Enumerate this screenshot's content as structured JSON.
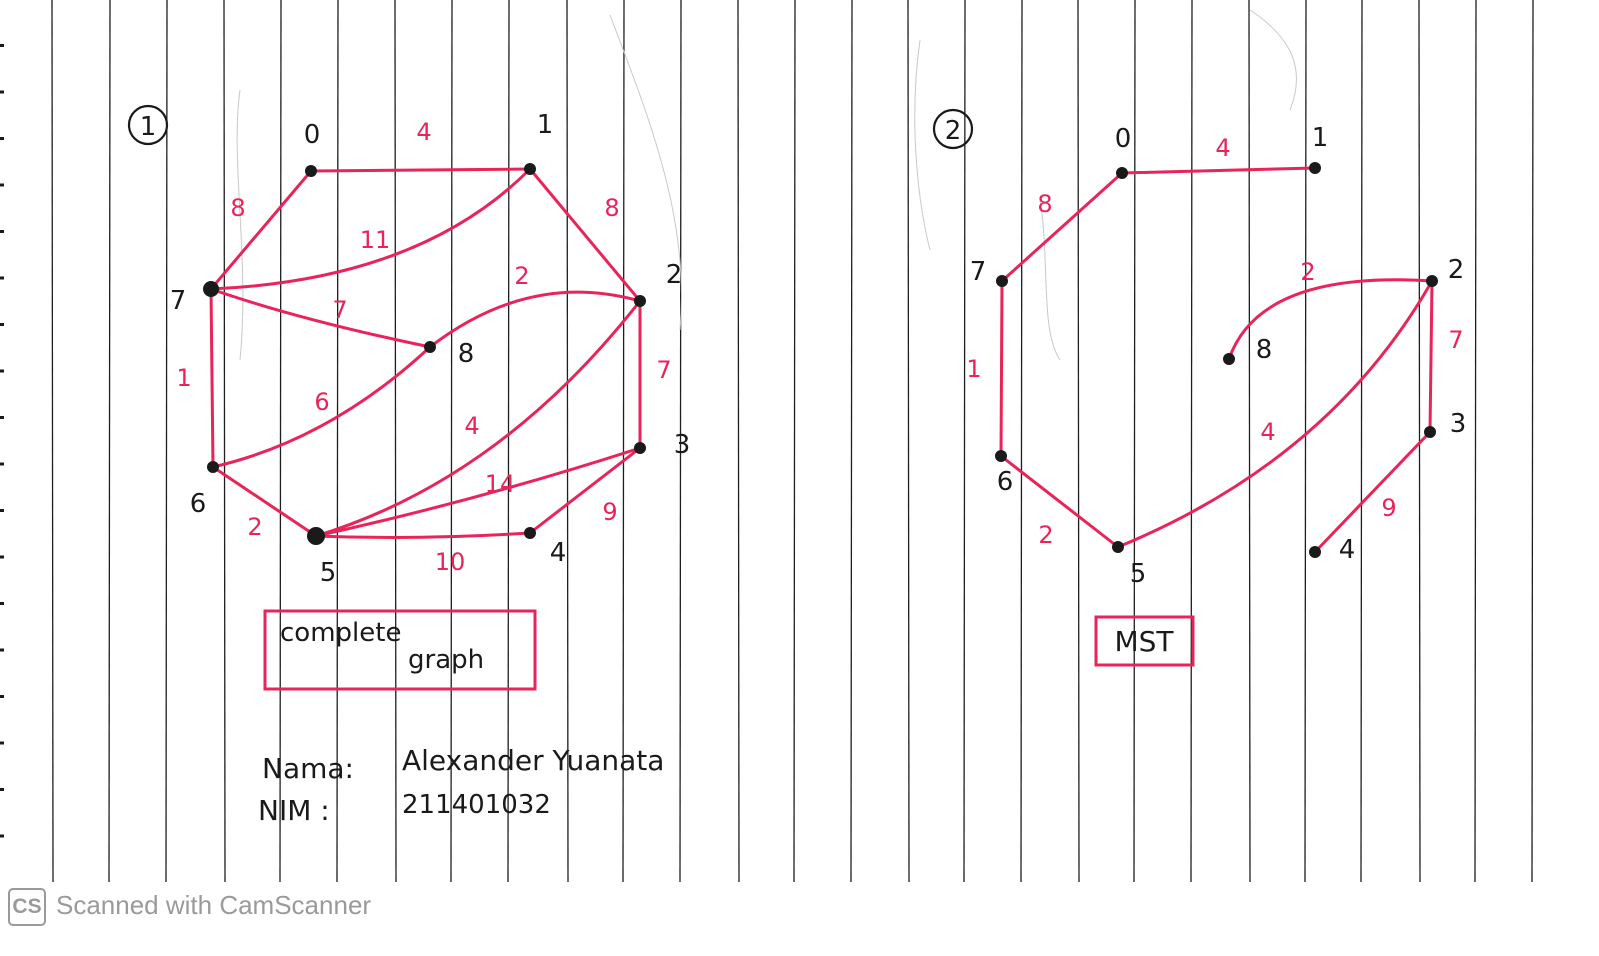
{
  "graph1": {
    "marker": "1",
    "box_line1": "complete",
    "box_line2": "graph",
    "nodes": [
      {
        "id": "0",
        "label": "0"
      },
      {
        "id": "1",
        "label": "1"
      },
      {
        "id": "2",
        "label": "2"
      },
      {
        "id": "3",
        "label": "3"
      },
      {
        "id": "4",
        "label": "4"
      },
      {
        "id": "5",
        "label": "5"
      },
      {
        "id": "6",
        "label": "6"
      },
      {
        "id": "7",
        "label": "7"
      },
      {
        "id": "8",
        "label": "8"
      }
    ],
    "edges": [
      {
        "from": "0",
        "to": "1",
        "weight": "4"
      },
      {
        "from": "0",
        "to": "7",
        "weight": "8"
      },
      {
        "from": "1",
        "to": "2",
        "weight": "8"
      },
      {
        "from": "1",
        "to": "7",
        "weight": "11"
      },
      {
        "from": "7",
        "to": "8",
        "weight": "7"
      },
      {
        "from": "7",
        "to": "6",
        "weight": "1"
      },
      {
        "from": "8",
        "to": "2",
        "weight": "2"
      },
      {
        "from": "8",
        "to": "6",
        "weight": "6"
      },
      {
        "from": "2",
        "to": "3",
        "weight": "7"
      },
      {
        "from": "2",
        "to": "5",
        "weight": "4"
      },
      {
        "from": "3",
        "to": "5",
        "weight": "14"
      },
      {
        "from": "3",
        "to": "4",
        "weight": "9"
      },
      {
        "from": "6",
        "to": "5",
        "weight": "2"
      },
      {
        "from": "5",
        "to": "4",
        "weight": "10"
      }
    ]
  },
  "graph2": {
    "marker": "2",
    "box_label": "MST",
    "nodes": [
      {
        "id": "0",
        "label": "0"
      },
      {
        "id": "1",
        "label": "1"
      },
      {
        "id": "2",
        "label": "2"
      },
      {
        "id": "3",
        "label": "3"
      },
      {
        "id": "4",
        "label": "4"
      },
      {
        "id": "5",
        "label": "5"
      },
      {
        "id": "6",
        "label": "6"
      },
      {
        "id": "7",
        "label": "7"
      },
      {
        "id": "8",
        "label": "8"
      }
    ],
    "edges": [
      {
        "from": "0",
        "to": "1",
        "weight": "4"
      },
      {
        "from": "0",
        "to": "7",
        "weight": "8"
      },
      {
        "from": "7",
        "to": "6",
        "weight": "1"
      },
      {
        "from": "6",
        "to": "5",
        "weight": "2"
      },
      {
        "from": "5",
        "to": "2",
        "weight": "4"
      },
      {
        "from": "8",
        "to": "2",
        "weight": "2"
      },
      {
        "from": "2",
        "to": "3",
        "weight": "7"
      },
      {
        "from": "3",
        "to": "4",
        "weight": "9"
      }
    ]
  },
  "signature": {
    "name_label": "Nama:",
    "name_value": "Alexander Yuanata",
    "nim_label": "NIM :",
    "nim_value": "211401032"
  },
  "footer": {
    "logo": "CS",
    "text": "Scanned with CamScanner"
  },
  "colors": {
    "red_ink": "#e8245a",
    "black_ink": "#1a1a1a",
    "rule_lines": "#1e1e1e",
    "watermark": "#9a9a9a"
  }
}
